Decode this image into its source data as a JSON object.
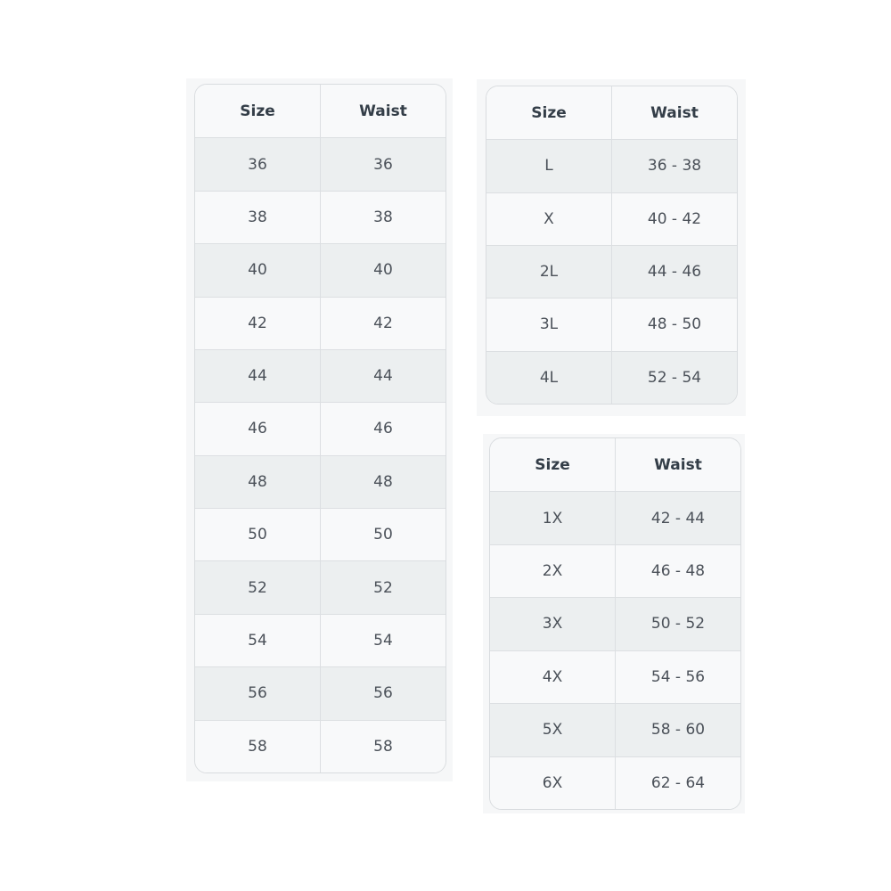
{
  "tables": [
    {
      "headers": [
        "Size",
        "Waist"
      ],
      "rows": [
        [
          "36",
          "36"
        ],
        [
          "38",
          "38"
        ],
        [
          "40",
          "40"
        ],
        [
          "42",
          "42"
        ],
        [
          "44",
          "44"
        ],
        [
          "46",
          "46"
        ],
        [
          "48",
          "48"
        ],
        [
          "50",
          "50"
        ],
        [
          "52",
          "52"
        ],
        [
          "54",
          "54"
        ],
        [
          "56",
          "56"
        ],
        [
          "58",
          "58"
        ]
      ]
    },
    {
      "headers": [
        "Size",
        "Waist"
      ],
      "rows": [
        [
          "L",
          "36 - 38"
        ],
        [
          "X",
          "40 - 42"
        ],
        [
          "2L",
          "44 - 46"
        ],
        [
          "3L",
          "48 - 50"
        ],
        [
          "4L",
          "52 - 54"
        ]
      ]
    },
    {
      "headers": [
        "Size",
        "Waist"
      ],
      "rows": [
        [
          "1X",
          "42 - 44"
        ],
        [
          "2X",
          "46 - 48"
        ],
        [
          "3X",
          "50 - 52"
        ],
        [
          "4X",
          "54 - 56"
        ],
        [
          "5X",
          "58 - 60"
        ],
        [
          "6X",
          "62 - 64"
        ]
      ]
    }
  ]
}
